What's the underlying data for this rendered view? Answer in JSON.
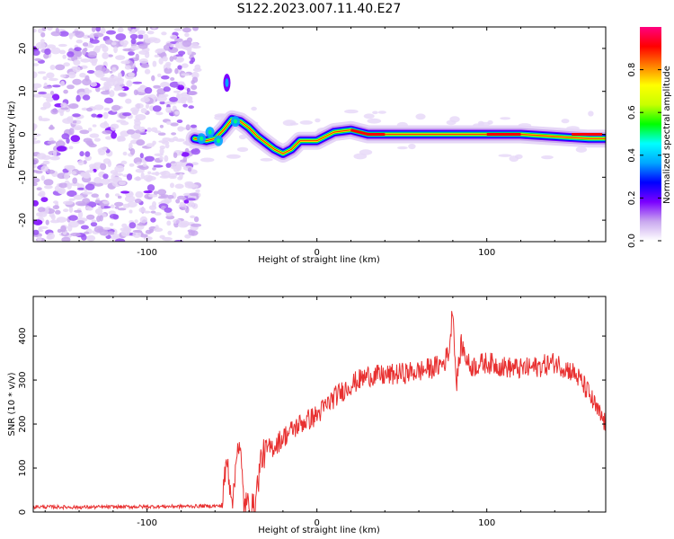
{
  "title": "S122.2023.007.11.40.E27",
  "chart_data": [
    {
      "type": "heatmap",
      "xlabel": "Height of straight line (km)",
      "ylabel": "Frequency (Hz)",
      "xlim": [
        -167,
        170
      ],
      "ylim": [
        -25,
        25
      ],
      "x_ticks": [
        -100,
        0,
        100
      ],
      "y_ticks": [
        -20,
        -10,
        0,
        10,
        20
      ],
      "colorbar": {
        "label": "Normalized spectral amplitude",
        "range": [
          0.0,
          1.0
        ],
        "ticks": [
          0.0,
          0.2,
          0.4,
          0.6,
          0.8
        ],
        "colors": [
          "#ffffff",
          "#c9a7ef",
          "#7b00ff",
          "#0000ff",
          "#00a6ff",
          "#00ffff",
          "#00ff00",
          "#c8ff00",
          "#ffff00",
          "#ff8000",
          "#ff0000",
          "#ff0080"
        ]
      },
      "ridge": {
        "description": "spectral ridge",
        "x": [
          -72,
          -65,
          -60,
          -55,
          -50,
          -45,
          -40,
          -35,
          -30,
          -25,
          -20,
          -15,
          -10,
          -5,
          0,
          5,
          10,
          20,
          30,
          40,
          60,
          80,
          100,
          120,
          140,
          160,
          170
        ],
        "y": [
          -1.0,
          -1.5,
          -1.0,
          1.0,
          3.5,
          3.0,
          1.5,
          -0.5,
          -2.0,
          -3.5,
          -4.5,
          -3.5,
          -1.5,
          -1.5,
          -1.5,
          -0.5,
          0.5,
          1.0,
          0.0,
          0.0,
          0.0,
          0.0,
          0.0,
          0.0,
          -0.5,
          -1.0,
          -1.0
        ]
      }
    },
    {
      "type": "line",
      "xlabel": "Height of straight line (km)",
      "ylabel": "SNR (10 * v/v)",
      "xlim": [
        -167,
        170
      ],
      "ylim": [
        0,
        490
      ],
      "x_ticks": [
        -100,
        0,
        100
      ],
      "y_ticks": [
        0,
        100,
        200,
        300,
        400
      ],
      "series": [
        {
          "name": "SNR",
          "color": "#e83030",
          "x": [
            -167,
            -140,
            -110,
            -80,
            -56,
            -53,
            -51,
            -49,
            -47,
            -45,
            -43,
            -41,
            -39,
            -37,
            -35,
            -33,
            -30,
            -25,
            -20,
            -10,
            0,
            10,
            20,
            30,
            40,
            50,
            60,
            70,
            75,
            78,
            80,
            82,
            85,
            90,
            100,
            110,
            120,
            130,
            140,
            145,
            150,
            155,
            160,
            165,
            170
          ],
          "y": [
            12,
            11,
            12,
            13,
            14,
            120,
            60,
            30,
            160,
            130,
            20,
            15,
            10,
            8,
            60,
            120,
            140,
            150,
            170,
            200,
            220,
            260,
            290,
            310,
            310,
            315,
            320,
            330,
            340,
            370,
            470,
            290,
            380,
            330,
            340,
            330,
            325,
            330,
            340,
            330,
            320,
            300,
            270,
            230,
            200
          ]
        }
      ]
    }
  ]
}
